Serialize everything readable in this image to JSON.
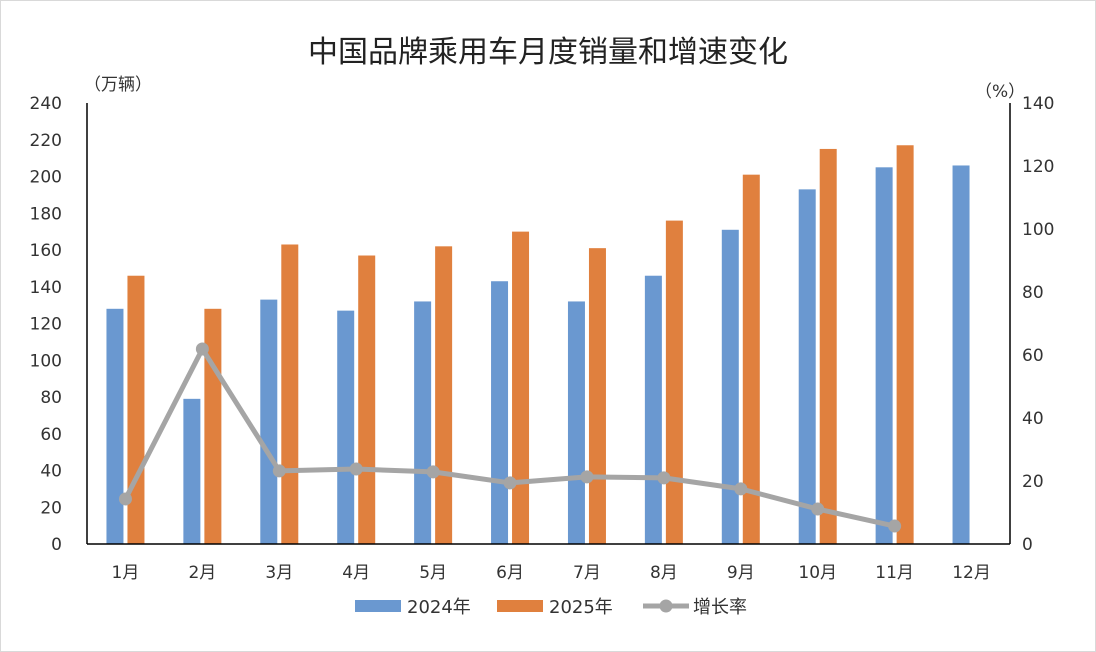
{
  "chart_data": {
    "type": "bar",
    "title": "中国品牌乘用车月度销量和增速变化",
    "ylabel_left": "（万辆）",
    "ylabel_right": "（%）",
    "ylim_left": [
      0,
      240
    ],
    "yticks_left": [
      0,
      20,
      40,
      60,
      80,
      100,
      120,
      140,
      160,
      180,
      200,
      220,
      240
    ],
    "ylim_right": [
      0,
      140
    ],
    "yticks_right": [
      0,
      20,
      40,
      60,
      80,
      100,
      120,
      140
    ],
    "categories": [
      "1月",
      "2月",
      "3月",
      "4月",
      "5月",
      "6月",
      "7月",
      "8月",
      "9月",
      "10月",
      "11月",
      "12月"
    ],
    "grid": false,
    "legend_position": "bottom",
    "series": [
      {
        "name": "2024年",
        "type": "bar",
        "axis": "left",
        "color": "#6a98d0",
        "values": [
          128,
          79,
          133,
          127,
          132,
          143,
          132,
          146,
          171,
          193,
          205,
          206
        ]
      },
      {
        "name": "2025年",
        "type": "bar",
        "axis": "left",
        "color": "#e0803e",
        "values": [
          146,
          128,
          163,
          157,
          162,
          170,
          161,
          176,
          201,
          215,
          217,
          null
        ]
      },
      {
        "name": "增长率",
        "type": "line",
        "axis": "right",
        "color": "#a5a5a5",
        "values": [
          14.3,
          61.9,
          23.2,
          23.8,
          22.9,
          19.4,
          21.3,
          21.0,
          17.5,
          11.1,
          5.7,
          null
        ]
      }
    ]
  }
}
